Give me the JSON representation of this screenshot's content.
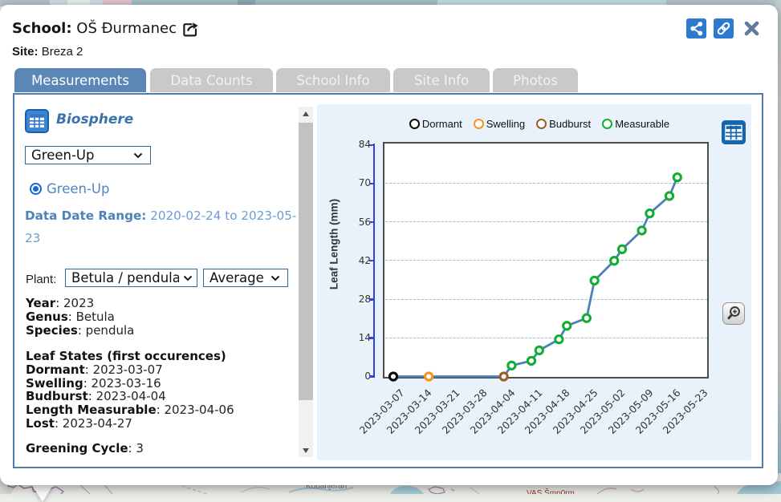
{
  "header": {
    "school_label": "School:",
    "school_name": "OŠ Đurmanec",
    "site_label": "Site:",
    "site_name": "Breza 2",
    "icons": [
      "share-icon",
      "link-icon",
      "close-icon",
      "open-in-new-icon"
    ]
  },
  "tabs": [
    {
      "label": "Measurements",
      "active": true
    },
    {
      "label": "Data Counts",
      "active": false
    },
    {
      "label": "School Info",
      "active": false
    },
    {
      "label": "Site Info",
      "active": false
    },
    {
      "label": "Photos",
      "active": false
    }
  ],
  "panel": {
    "section_title": "Biosphere",
    "protocol_select_value": "Green-Up",
    "radio_label": "Green-Up",
    "date_range_label": "Data Date Range:",
    "date_range_value": "2020-02-24 to 2023-05-23",
    "plant_label": "Plant:",
    "plant_select_value": "Betula / pendula",
    "stat_select_value": "Average",
    "details": [
      {
        "label": "Year",
        "value": "2023"
      },
      {
        "label": "Genus",
        "value": "Betula"
      },
      {
        "label": "Species",
        "value": "pendula"
      }
    ],
    "leaf_states_title": "Leaf States (first occurences)",
    "leaf_states": [
      {
        "label": "Dormant",
        "value": "2023-03-07"
      },
      {
        "label": "Swelling",
        "value": "2023-03-16"
      },
      {
        "label": "Budburst",
        "value": "2023-04-04"
      },
      {
        "label": "Length Measurable",
        "value": "2023-04-06"
      },
      {
        "label": "Lost",
        "value": "2023-04-27"
      }
    ],
    "greening_label": "Greening Cycle",
    "greening_value": "3"
  },
  "chart_data": {
    "type": "line",
    "ylabel": "Leaf Length (mm)",
    "ylim": [
      0,
      84
    ],
    "yticks": [
      0,
      14,
      28,
      42,
      56,
      70,
      84
    ],
    "xticks": [
      "2023-03-07",
      "2023-03-14",
      "2023-03-21",
      "2023-03-28",
      "2023-04-04",
      "2023-04-11",
      "2023-04-18",
      "2023-04-25",
      "2023-05-02",
      "2023-05-09",
      "2023-05-16",
      "2023-05-23"
    ],
    "grid": "dashed-horizontal",
    "legend_position": "top-center",
    "legend": [
      {
        "label": "Dormant",
        "color": "#0a0a0a"
      },
      {
        "label": "Swelling",
        "color": "#f7941e"
      },
      {
        "label": "Budburst",
        "color": "#9c5f22"
      },
      {
        "label": "Measurable",
        "color": "#12ae33"
      }
    ],
    "line_color": "#4d80b7",
    "series": [
      {
        "name": "Leaf Length",
        "points": [
          {
            "date": "2023-03-07",
            "value": 0,
            "state": "dormant"
          },
          {
            "date": "2023-03-16",
            "value": 0,
            "state": "swelling"
          },
          {
            "date": "2023-04-04",
            "value": 0,
            "state": "budburst"
          },
          {
            "date": "2023-04-06",
            "value": 4,
            "state": "measurable"
          },
          {
            "date": "2023-04-11",
            "value": 5.7,
            "state": "measurable"
          },
          {
            "date": "2023-04-13",
            "value": 9.5,
            "state": "measurable"
          },
          {
            "date": "2023-04-18",
            "value": 13.5,
            "state": "measurable"
          },
          {
            "date": "2023-04-20",
            "value": 18.4,
            "state": "measurable"
          },
          {
            "date": "2023-04-25",
            "value": 21.2,
            "state": "measurable"
          },
          {
            "date": "2023-04-27",
            "value": 34.8,
            "state": "measurable"
          },
          {
            "date": "2023-05-02",
            "value": 42,
            "state": "measurable"
          },
          {
            "date": "2023-05-04",
            "value": 46.2,
            "state": "measurable"
          },
          {
            "date": "2023-05-09",
            "value": 53,
            "state": "measurable"
          },
          {
            "date": "2023-05-11",
            "value": 59.2,
            "state": "measurable"
          },
          {
            "date": "2023-05-16",
            "value": 65.5,
            "state": "measurable"
          },
          {
            "date": "2023-05-18",
            "value": 72.3,
            "state": "measurable"
          }
        ]
      }
    ]
  },
  "map": {
    "labels": [
      {
        "text": "Kobanjeran",
        "color": "#7b6693"
      },
      {
        "text": "VAS Šmp0rm",
        "color": "#8c3a34"
      }
    ]
  }
}
